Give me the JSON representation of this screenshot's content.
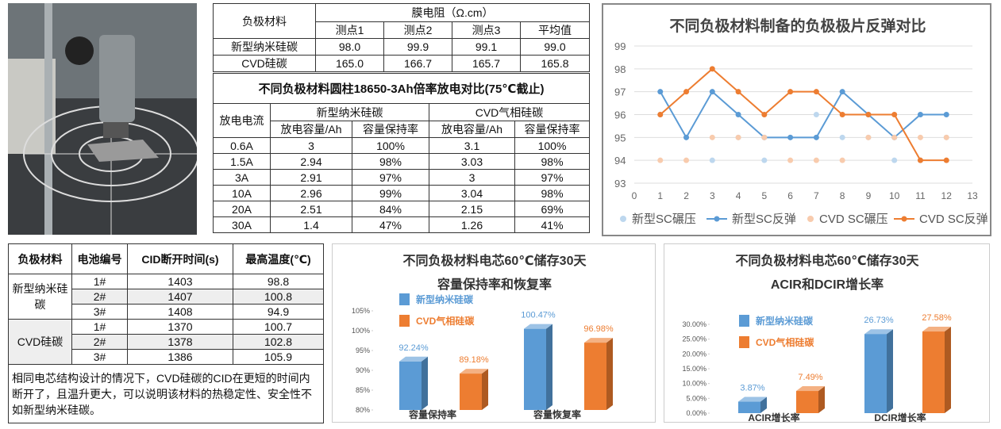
{
  "table1": {
    "header": {
      "material": "负极材料",
      "group": "膜电阻（Ω.cm）",
      "points": [
        "测点1",
        "测点2",
        "测点3",
        "平均值"
      ]
    },
    "rows": [
      [
        "新型纳米硅碳",
        "98.0",
        "99.9",
        "99.1",
        "99.0"
      ],
      [
        "CVD硅碳",
        "165.0",
        "166.7",
        "165.7",
        "165.8"
      ]
    ]
  },
  "table2": {
    "title": "不同负极材料圆柱18650-3Ah倍率放电对比(75℃截止)",
    "header": {
      "current": "放电电流",
      "groups": [
        "新型纳米硅碳",
        "CVD气相硅碳"
      ],
      "sub": [
        "放电容量/Ah",
        "容量保持率",
        "放电容量/Ah",
        "容量保持率"
      ]
    },
    "rows": [
      [
        "0.6A",
        "3",
        "100%",
        "3.1",
        "100%"
      ],
      [
        "1.5A",
        "2.94",
        "98%",
        "3.03",
        "98%"
      ],
      [
        "3A",
        "2.91",
        "97%",
        "3",
        "97%"
      ],
      [
        "10A",
        "2.96",
        "99%",
        "3.04",
        "98%"
      ],
      [
        "20A",
        "2.51",
        "84%",
        "2.15",
        "69%"
      ],
      [
        "30A",
        "1.4",
        "47%",
        "1.26",
        "41%"
      ]
    ]
  },
  "table3": {
    "header": [
      "负极材料",
      "电池编号",
      "CID断开时间(s)",
      "最高温度(℃)"
    ],
    "groups": [
      {
        "material": "新型纳米硅碳",
        "rows": [
          [
            "1#",
            "1403",
            "98.8"
          ],
          [
            "2#",
            "1407",
            "100.8"
          ],
          [
            "3#",
            "1408",
            "94.9"
          ]
        ]
      },
      {
        "material": "CVD硅碳",
        "rows": [
          [
            "1#",
            "1370",
            "100.7"
          ],
          [
            "2#",
            "1378",
            "102.8"
          ],
          [
            "3#",
            "1386",
            "105.9"
          ]
        ]
      }
    ],
    "note": "相同电芯结构设计的情况下，CVD硅碳的CID在更短的时间内断开了，且温升更大，可以说明该材料的热稳定性、安全性不如新型纳米硅碳。"
  },
  "chart_data": [
    {
      "type": "line",
      "title": "不同负极材料制备的负极极片反弹对比",
      "x": [
        1,
        2,
        3,
        4,
        5,
        6,
        7,
        8,
        9,
        10,
        11,
        12
      ],
      "xlim": [
        0,
        13
      ],
      "xticks": [
        0,
        1,
        2,
        3,
        4,
        5,
        6,
        7,
        8,
        9,
        10,
        11,
        12,
        13
      ],
      "ylim": [
        93,
        99
      ],
      "yticks": [
        93,
        94,
        95,
        96,
        97,
        98,
        99
      ],
      "grid": true,
      "legend": "bottom",
      "series": [
        {
          "name": "新型SC碾压",
          "color": "#bdd7ee",
          "markers_only": true,
          "values": [
            96,
            95,
            94,
            95,
            94,
            95,
            96,
            95,
            95,
            94,
            94,
            95
          ]
        },
        {
          "name": "新型SC反弹",
          "color": "#5b9bd5",
          "markers_only": false,
          "values": [
            97,
            95,
            97,
            96,
            95,
            95,
            95,
            97,
            96,
            95,
            96,
            96
          ]
        },
        {
          "name": "CVD SC碾压",
          "color": "#f8cbad",
          "markers_only": true,
          "values": [
            94,
            94,
            95,
            95,
            95,
            94,
            94,
            94,
            95,
            95,
            95,
            95
          ]
        },
        {
          "name": "CVD SC反弹",
          "color": "#ed7d31",
          "markers_only": false,
          "values": [
            96,
            97,
            98,
            97,
            96,
            97,
            97,
            96,
            96,
            96,
            94,
            94
          ]
        }
      ]
    },
    {
      "type": "bar",
      "title": [
        "不同负极材料电芯60℃储存30天",
        "容量保持率和恢复率"
      ],
      "categories": [
        "容量保持率",
        "容量恢复率"
      ],
      "ylim": [
        80,
        105
      ],
      "yticks": [
        {
          "value": 80,
          "label": "80%"
        },
        {
          "value": 85,
          "label": "85%"
        },
        {
          "value": 90,
          "label": "90%"
        },
        {
          "value": 95,
          "label": "95%"
        },
        {
          "value": 100,
          "label": "100%"
        },
        {
          "value": 105,
          "label": "105%"
        }
      ],
      "series": [
        {
          "name": "新型纳米硅碳",
          "color": "#5b9bd5",
          "values": [
            92.24,
            100.47
          ],
          "value_labels": [
            "92.24%",
            "100.47%"
          ]
        },
        {
          "name": "CVD气相硅碳",
          "color": "#ed7d31",
          "values": [
            89.18,
            96.98
          ],
          "value_labels": [
            "89.18%",
            "96.98%"
          ]
        }
      ]
    },
    {
      "type": "bar",
      "title": [
        "不同负极材料电芯60℃储存30天",
        "ACIR和DCIR增长率"
      ],
      "categories": [
        "ACIR增长率",
        "DCIR增长率"
      ],
      "ylim": [
        0,
        30
      ],
      "yticks": [
        {
          "value": 0,
          "label": "0.00%"
        },
        {
          "value": 5,
          "label": "5.00%"
        },
        {
          "value": 10,
          "label": "10.00%"
        },
        {
          "value": 15,
          "label": "15.00%"
        },
        {
          "value": 20,
          "label": "20.00%"
        },
        {
          "value": 25,
          "label": "25.00%"
        },
        {
          "value": 30,
          "label": "30.00%"
        }
      ],
      "series": [
        {
          "name": "新型纳米硅碳",
          "color": "#5b9bd5",
          "values": [
            3.87,
            26.73
          ],
          "value_labels": [
            "3.87%",
            "26.73%"
          ]
        },
        {
          "name": "CVD气相硅碳",
          "color": "#ed7d31",
          "values": [
            7.49,
            27.58
          ],
          "value_labels": [
            "7.49%",
            "27.58%"
          ]
        }
      ]
    }
  ]
}
